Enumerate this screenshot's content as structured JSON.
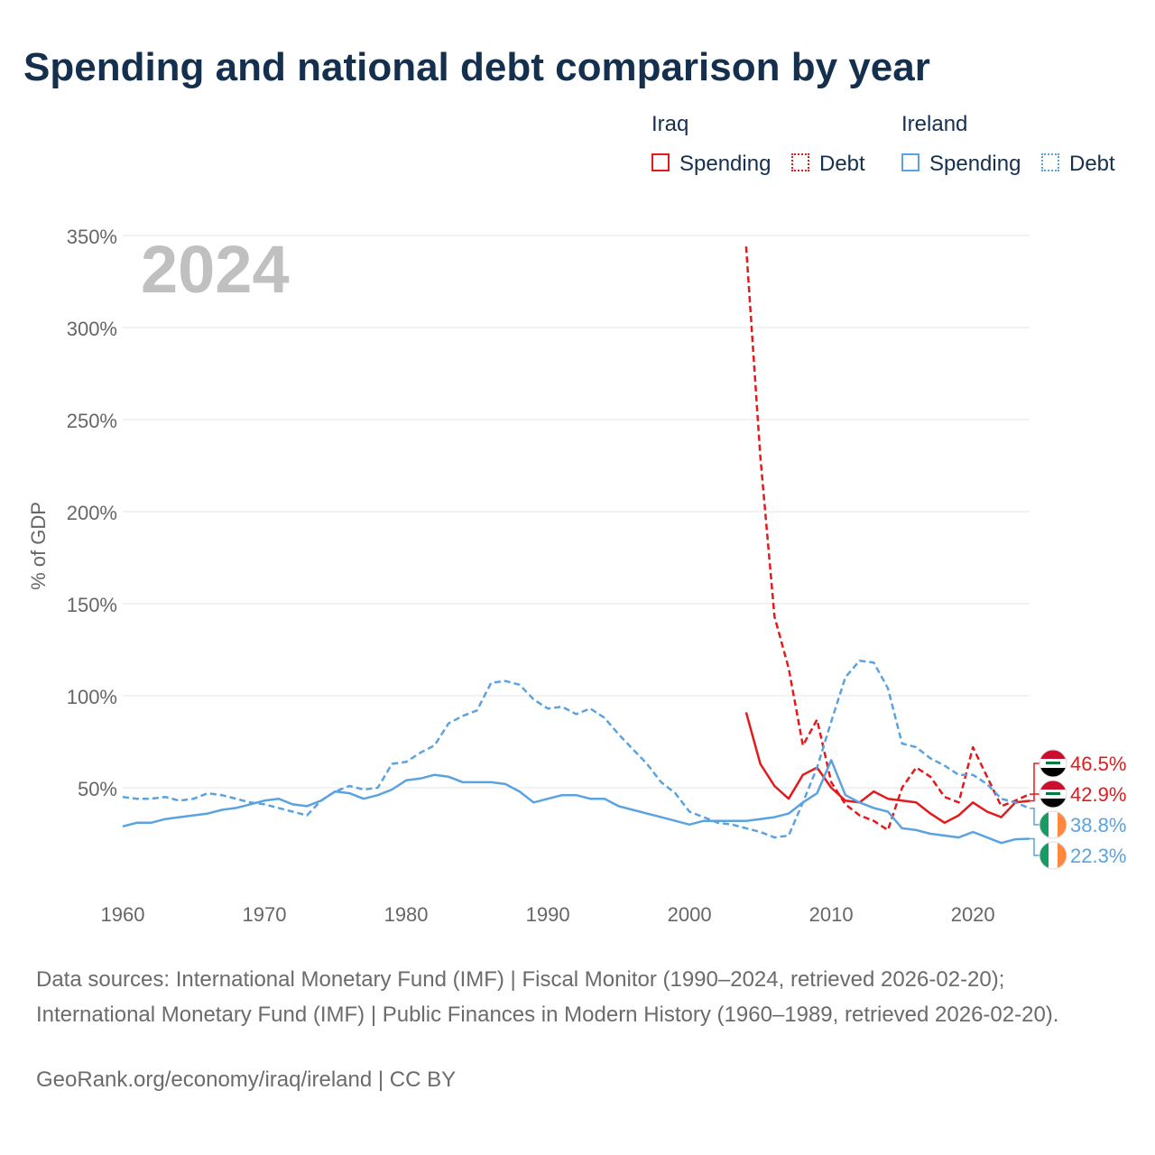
{
  "title": "Spending and national debt comparison by year",
  "legend": {
    "groups": [
      {
        "name": "Iraq",
        "items": [
          {
            "label": "Spending",
            "color": "#e31a1c",
            "style": "solid"
          },
          {
            "label": "Debt",
            "color": "#e31a1c",
            "style": "dotted"
          }
        ]
      },
      {
        "name": "Ireland",
        "items": [
          {
            "label": "Spending",
            "color": "#5ba3e0",
            "style": "solid"
          },
          {
            "label": "Debt",
            "color": "#5ba3e0",
            "style": "dotted"
          }
        ]
      }
    ]
  },
  "colors": {
    "iraq": "#e31a1c",
    "ireland": "#5ba3e0",
    "grid": "#e6e6e6",
    "axis_text": "#666666",
    "year_watermark": "#c0c0c0"
  },
  "chart_data": {
    "type": "line",
    "title": "Spending and national debt comparison by year",
    "year_label": "2024",
    "ylabel": "% of GDP",
    "xlabel": "",
    "ylim": [
      0,
      350
    ],
    "xlim": [
      1960,
      2024
    ],
    "y_ticks": [
      {
        "value": 50,
        "label": "50%"
      },
      {
        "value": 100,
        "label": "100%"
      },
      {
        "value": 150,
        "label": "150%"
      },
      {
        "value": 200,
        "label": "200%"
      },
      {
        "value": 250,
        "label": "250%"
      },
      {
        "value": 300,
        "label": "300%"
      },
      {
        "value": 350,
        "label": "350%"
      }
    ],
    "x_ticks": [
      {
        "value": 1960,
        "label": "1960"
      },
      {
        "value": 1970,
        "label": "1970"
      },
      {
        "value": 1980,
        "label": "1980"
      },
      {
        "value": 1990,
        "label": "1990"
      },
      {
        "value": 2000,
        "label": "2000"
      },
      {
        "value": 2010,
        "label": "2010"
      },
      {
        "value": 2020,
        "label": "2020"
      }
    ],
    "grid": true,
    "series": [
      {
        "name": "Iraq Debt",
        "country": "Iraq",
        "measure": "Debt",
        "color": "#e31a1c",
        "dashed": true,
        "x": [
          2004,
          2005,
          2006,
          2007,
          2008,
          2009,
          2010,
          2011,
          2012,
          2013,
          2014,
          2015,
          2016,
          2017,
          2018,
          2019,
          2020,
          2021,
          2022,
          2023,
          2024
        ],
        "values": [
          344,
          230,
          143,
          115,
          73,
          87,
          53,
          41,
          35,
          32,
          27,
          50,
          61,
          56,
          45,
          42,
          72,
          56,
          40,
          43,
          46.5
        ],
        "end_label": "46.5%"
      },
      {
        "name": "Iraq Spending",
        "country": "Iraq",
        "measure": "Spending",
        "color": "#e31a1c",
        "dashed": false,
        "x": [
          2004,
          2005,
          2006,
          2007,
          2008,
          2009,
          2010,
          2011,
          2012,
          2013,
          2014,
          2015,
          2016,
          2017,
          2018,
          2019,
          2020,
          2021,
          2022,
          2023,
          2024
        ],
        "values": [
          91,
          63,
          51,
          44,
          57,
          61,
          50,
          43,
          42,
          48,
          44,
          43,
          42,
          36,
          31,
          35,
          42,
          37,
          34,
          42,
          42.9
        ],
        "end_label": "42.9%"
      },
      {
        "name": "Ireland Debt",
        "country": "Ireland",
        "measure": "Debt",
        "color": "#5ba3e0",
        "dashed": true,
        "x": [
          1960,
          1961,
          1962,
          1963,
          1964,
          1965,
          1966,
          1967,
          1968,
          1969,
          1970,
          1971,
          1972,
          1973,
          1974,
          1975,
          1976,
          1977,
          1978,
          1979,
          1980,
          1981,
          1982,
          1983,
          1984,
          1985,
          1986,
          1987,
          1988,
          1989,
          1990,
          1991,
          1992,
          1993,
          1994,
          1995,
          1996,
          1997,
          1998,
          1999,
          2000,
          2001,
          2002,
          2003,
          2004,
          2005,
          2006,
          2007,
          2008,
          2009,
          2010,
          2011,
          2012,
          2013,
          2014,
          2015,
          2016,
          2017,
          2018,
          2019,
          2020,
          2021,
          2022,
          2023,
          2024
        ],
        "values": [
          45,
          44,
          44,
          45,
          43,
          44,
          47,
          46,
          44,
          42,
          41,
          39,
          37,
          35,
          43,
          48,
          51,
          49,
          50,
          63,
          64,
          69,
          73,
          85,
          89,
          92,
          107,
          108,
          106,
          98,
          93,
          94,
          90,
          93,
          88,
          79,
          71,
          63,
          53,
          47,
          37,
          34,
          31,
          30,
          28,
          26,
          23,
          24,
          42,
          61,
          86,
          110,
          119,
          118,
          104,
          74,
          72,
          66,
          62,
          57,
          57,
          52,
          44,
          42,
          38.8
        ],
        "end_label": "38.8%"
      },
      {
        "name": "Ireland Spending",
        "country": "Ireland",
        "measure": "Spending",
        "color": "#5ba3e0",
        "dashed": false,
        "x": [
          1960,
          1961,
          1962,
          1963,
          1964,
          1965,
          1966,
          1967,
          1968,
          1969,
          1970,
          1971,
          1972,
          1973,
          1974,
          1975,
          1976,
          1977,
          1978,
          1979,
          1980,
          1981,
          1982,
          1983,
          1984,
          1985,
          1986,
          1987,
          1988,
          1989,
          1990,
          1991,
          1992,
          1993,
          1994,
          1995,
          1996,
          1997,
          1998,
          1999,
          2000,
          2001,
          2002,
          2003,
          2004,
          2005,
          2006,
          2007,
          2008,
          2009,
          2010,
          2011,
          2012,
          2013,
          2014,
          2015,
          2016,
          2017,
          2018,
          2019,
          2020,
          2021,
          2022,
          2023,
          2024
        ],
        "values": [
          29,
          31,
          31,
          33,
          34,
          35,
          36,
          38,
          39,
          41,
          43,
          44,
          41,
          40,
          43,
          48,
          47,
          44,
          46,
          49,
          54,
          55,
          57,
          56,
          53,
          53,
          53,
          52,
          48,
          42,
          44,
          46,
          46,
          44,
          44,
          40,
          38,
          36,
          34,
          32,
          30,
          32,
          32,
          32,
          32,
          33,
          34,
          36,
          42,
          47,
          65,
          46,
          42,
          39,
          37,
          28,
          27,
          25,
          24,
          23,
          26,
          23,
          20,
          22,
          22.3
        ],
        "end_label": "22.3%"
      }
    ]
  },
  "source": "Data sources: International Monetary Fund (IMF) | Fiscal Monitor (1990–2024, retrieved 2026-02-20); International Monetary Fund (IMF) | Public Finances in Modern History (1960–1989, retrieved 2026-02-20).",
  "credit": "GeoRank.org/economy/iraq/ireland | CC BY"
}
